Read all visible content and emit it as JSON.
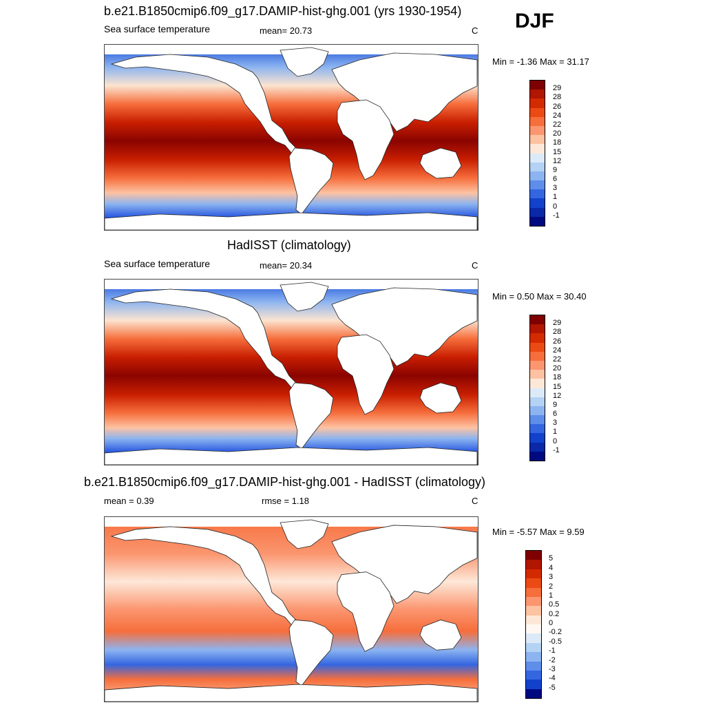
{
  "season": "DJF",
  "panels": [
    {
      "title": "b.e21.B1850cmip6.f09_g17.DAMIP-hist-ghg.001 (yrs 1930-1954)",
      "left_label": "Sea surface temperature",
      "mid_label": "mean=  20.73",
      "units": "C",
      "minmax": "Min =  -1.36 Max =  31.17",
      "kind": "sst",
      "colorbar_labels": [
        "29",
        "28",
        "26",
        "24",
        "22",
        "20",
        "18",
        "15",
        "12",
        "9",
        "6",
        "3",
        "1",
        "0",
        "-1"
      ],
      "colors": [
        "#7f0000",
        "#b01600",
        "#d42a00",
        "#ec4a14",
        "#f66e3c",
        "#fb9670",
        "#fdc2a2",
        "#fde8d8",
        "#dceaf8",
        "#b4d2f4",
        "#8cb4f0",
        "#5e8eea",
        "#3466e0",
        "#1242cc",
        "#0a28a8",
        "#000a80"
      ]
    },
    {
      "title": "HadISST (climatology)",
      "left_label": "Sea surface temperature",
      "mid_label": "mean=  20.34",
      "units": "C",
      "minmax": "Min =   0.50 Max =  30.40",
      "kind": "sst",
      "colorbar_labels": [
        "29",
        "28",
        "26",
        "24",
        "22",
        "20",
        "18",
        "15",
        "12",
        "9",
        "6",
        "3",
        "1",
        "0",
        "-1"
      ],
      "colors": [
        "#7f0000",
        "#b01600",
        "#d42a00",
        "#ec4a14",
        "#f66e3c",
        "#fb9670",
        "#fdc2a2",
        "#fde8d8",
        "#dceaf8",
        "#b4d2f4",
        "#8cb4f0",
        "#5e8eea",
        "#3466e0",
        "#1242cc",
        "#0a28a8",
        "#000a80"
      ]
    },
    {
      "title": "b.e21.B1850cmip6.f09_g17.DAMIP-hist-ghg.001 - HadISST (climatology)",
      "left_label": "mean =   0.39",
      "mid_label": "rmse =   1.18",
      "units": "C",
      "minmax": "Min =  -5.57 Max =   9.59",
      "kind": "diff",
      "colorbar_labels": [
        "5",
        "4",
        "3",
        "2",
        "1",
        "0.5",
        "0.2",
        "0",
        "-0.2",
        "-0.5",
        "-1",
        "-2",
        "-3",
        "-4",
        "-5"
      ],
      "colors": [
        "#7f0000",
        "#b01600",
        "#d42a00",
        "#ec4a14",
        "#f66e3c",
        "#fb9670",
        "#fdc2a2",
        "#fde8d8",
        "#fff8f2",
        "#dceaf8",
        "#b4d2f4",
        "#8cb4f0",
        "#5e8eea",
        "#3466e0",
        "#1242cc",
        "#000a80"
      ]
    }
  ]
}
